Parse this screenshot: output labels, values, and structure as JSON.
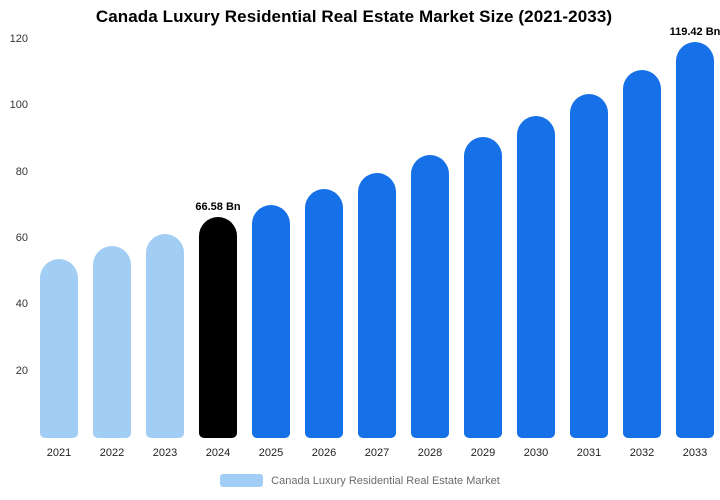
{
  "title": "Canada Luxury Residential Real Estate Market Size (2021-2033)",
  "legend": {
    "label": "Canada Luxury Residential Real Estate Market",
    "swatch_color": "#a2cdf5"
  },
  "chart_data": {
    "type": "bar",
    "title": "Canada Luxury Residential Real Estate Market Size (2021-2033)",
    "xlabel": "",
    "ylabel": "",
    "unit": "Bn",
    "categories": [
      "2021",
      "2022",
      "2023",
      "2024",
      "2025",
      "2026",
      "2027",
      "2028",
      "2029",
      "2030",
      "2031",
      "2032",
      "2033"
    ],
    "values": [
      54.1,
      57.9,
      61.6,
      66.58,
      70.3,
      75.0,
      80.0,
      85.4,
      90.9,
      97.1,
      103.6,
      110.9,
      119.42
    ],
    "bar_colors": [
      "#a2cdf5",
      "#a2cdf5",
      "#a2cdf5",
      "#000000",
      "#1670e8",
      "#1670e8",
      "#1670e8",
      "#1670e8",
      "#1670e8",
      "#1670e8",
      "#1670e8",
      "#1670e8",
      "#1670e8"
    ],
    "annotations": [
      {
        "category": "2024",
        "text": "66.58 Bn"
      },
      {
        "category": "2033",
        "text": "119.42 Bn"
      }
    ],
    "ylim": [
      0,
      120
    ],
    "yticks": [
      20,
      40,
      60,
      80,
      100,
      120
    ],
    "grid": false,
    "legend_position": "bottom"
  }
}
